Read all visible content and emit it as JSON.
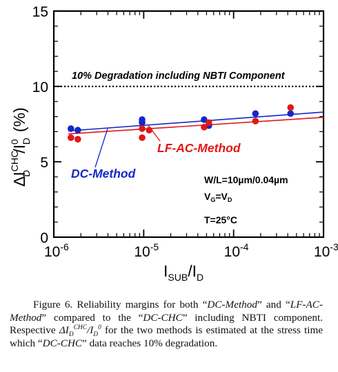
{
  "chart_data": {
    "type": "scatter",
    "xscale": "log",
    "xlim": [
      1e-06,
      0.001
    ],
    "ylim": [
      0,
      15
    ],
    "x_ticks": [
      "10-6",
      "10-5",
      "10-4",
      "10-3"
    ],
    "y_ticks": [
      "0",
      "5",
      "10",
      "15"
    ],
    "xlabel": {
      "main": "I",
      "sub_a": "SUB",
      "mid": "/I",
      "sub_b": "D"
    },
    "ylabel": {
      "delta": "ΔI",
      "sup_a": "CHC",
      "sub_a": "D",
      "mid": "/I",
      "sup_b": "0",
      "sub_b": "D",
      "unit": "(%)"
    },
    "reference_line": {
      "y": 10,
      "label": "10% Degradation including NBTI Component",
      "style": "dotted"
    },
    "series": [
      {
        "name": "DC-Method",
        "color": "#1428c8",
        "points": [
          {
            "x": 1.55e-06,
            "y": 7.2
          },
          {
            "x": 1.85e-06,
            "y": 7.1
          },
          {
            "x": 9.6e-06,
            "y": 7.8
          },
          {
            "x": 9.6e-06,
            "y": 7.6
          },
          {
            "x": 4.7e-05,
            "y": 7.8
          },
          {
            "x": 5.3e-05,
            "y": 7.4
          },
          {
            "x": 0.000175,
            "y": 8.2
          },
          {
            "x": 0.00043,
            "y": 8.2
          }
        ],
        "fit": [
          {
            "x": 1.45e-06,
            "y": 7.05
          },
          {
            "x": 0.001,
            "y": 8.3
          }
        ]
      },
      {
        "name": "LF-AC-Method",
        "color": "#e01818",
        "points": [
          {
            "x": 1.55e-06,
            "y": 6.6
          },
          {
            "x": 1.85e-06,
            "y": 6.5
          },
          {
            "x": 9.6e-06,
            "y": 7.2
          },
          {
            "x": 9.6e-06,
            "y": 6.6
          },
          {
            "x": 1.15e-05,
            "y": 7.1
          },
          {
            "x": 4.7e-05,
            "y": 7.3
          },
          {
            "x": 5.3e-05,
            "y": 7.6
          },
          {
            "x": 0.000175,
            "y": 7.7
          },
          {
            "x": 0.00043,
            "y": 8.6
          }
        ],
        "fit": [
          {
            "x": 1.45e-06,
            "y": 6.85
          },
          {
            "x": 0.001,
            "y": 7.95
          }
        ]
      }
    ],
    "annotations": {
      "condition_1": "W/L=10µm/0.04µm",
      "condition_2_a": "V",
      "condition_2_sub_a": "G",
      "condition_2_mid": "=V",
      "condition_2_sub_b": "D",
      "condition_3": "T=25°C"
    }
  },
  "caption": {
    "p1": "Figure 6. Reliability margins for both “",
    "dc_method": "DC-Method",
    "p2": "” and “",
    "lf_ac_method": "LF-AC-Method",
    "p3": "” compared to the “",
    "dc_chc_1": "DC-CHC",
    "p4": "” including NBTI component. Respective ",
    "delta": "ΔI",
    "sub_a": "D",
    "sup_a": "CHC",
    "slash": "/I",
    "sub_b": "D",
    "sup_b": "0",
    "p5": " for the two methods is estimated at the stress time which “",
    "dc_chc_2": "DC-CHC",
    "p6": "” data reaches 10% degradation."
  }
}
